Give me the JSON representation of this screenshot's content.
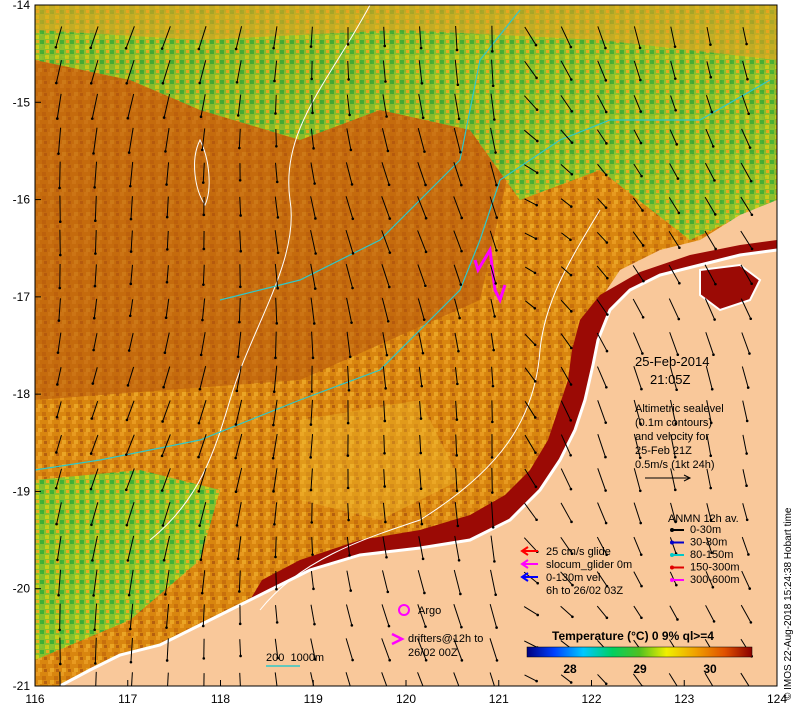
{
  "map": {
    "date": "25-Feb-2014",
    "time": "21:05Z",
    "lon_ticks": [
      "116",
      "117",
      "118",
      "119",
      "120",
      "121",
      "122",
      "123",
      "124"
    ],
    "lat_ticks": [
      "-14",
      "-15",
      "-16",
      "-17",
      "-18",
      "-19",
      "-20",
      "-21"
    ],
    "lon_range": [
      116,
      124
    ],
    "lat_range": [
      -21,
      -14
    ],
    "altimetry_note": [
      "Altimetric sealevel",
      "(0.1m contours)",
      "and velocity for",
      "25-Feb 21Z",
      "0.5m/s (1kt 24h)"
    ],
    "anmn_title": "ANMN 12h av.",
    "anmn_items": [
      {
        "label": "0-30m",
        "color": "#000000"
      },
      {
        "label": "30-80m",
        "color": "#0000cc"
      },
      {
        "label": "80-150m",
        "color": "#00c8c8"
      },
      {
        "label": "150-300m",
        "color": "#e00000"
      },
      {
        "label": "300-600m",
        "color": "#ff00ff"
      }
    ],
    "glider_legend": [
      {
        "label": "25 cm/s glide",
        "color": "#ff0000"
      },
      {
        "label": "slocum_glider 0m",
        "color": "#ff00ff"
      },
      {
        "label": "0-130m vel",
        "color": "#0000ff"
      },
      {
        "label": "6h to 26/02 03Z",
        "color": ""
      }
    ],
    "argo_label": "Argo",
    "drifters_label": [
      "drifters@12h to",
      "26/02 00Z"
    ],
    "depth_legend": "200  1000m",
    "temp_title": "Temperature (°C) 0 9% ql>=4",
    "temp_ticks": [
      "28",
      "29",
      "30"
    ],
    "credit": "© IMOS 22-Aug-2018 15:24:38 Hobart time",
    "colors": {
      "land": "#f9c89a",
      "warm_shelf": "#9b0a05",
      "sst_mid": "#e08a10",
      "sst_cool": "#2ca02c"
    }
  }
}
